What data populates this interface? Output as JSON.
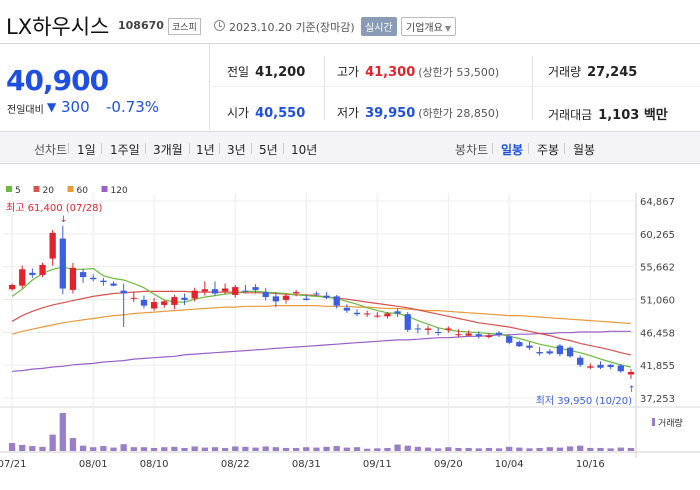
{
  "header": {
    "name": "LX하우시스",
    "code": "108670",
    "market": "코스피",
    "date": "2023.10.20 기준(장마감)",
    "realtime_label": "실시간",
    "company_label": "기업개요"
  },
  "price": {
    "current": "40,900",
    "change_label": "전일대비",
    "change_value": "300",
    "change_pct": "-0.73%",
    "color_down": "#1e4fe0",
    "color_up": "#e0242b"
  },
  "stats": {
    "prev_label": "전일",
    "prev": "41,200",
    "high_label": "고가",
    "high": "41,300",
    "upper_limit": "(상한가 53,500)",
    "volume_label": "거래량",
    "volume": "27,245",
    "open_label": "시가",
    "open": "40,550",
    "low_label": "저가",
    "low": "39,950",
    "lower_limit": "(하한가 28,850)",
    "amount_label": "거래대금",
    "amount": "1,103 백만"
  },
  "period_bar": {
    "line_label": "선차트",
    "periods": [
      "1일",
      "1주일",
      "3개월",
      "1년",
      "3년",
      "5년",
      "10년"
    ],
    "candle_label": "봉차트",
    "candles": [
      "일봉",
      "주봉",
      "월봉"
    ],
    "active_candle": "일봉"
  },
  "chart_data": {
    "type": "candlestick",
    "legend": [
      {
        "label": "5",
        "color": "#6dbb3d"
      },
      {
        "label": "20",
        "color": "#d9534f"
      },
      {
        "label": "60",
        "color": "#e89a3c"
      },
      {
        "label": "120",
        "color": "#9a5fc8"
      }
    ],
    "ylim": [
      37253,
      64867
    ],
    "y_ticks": [
      "64,867",
      "60,265",
      "55,662",
      "51,060",
      "46,458",
      "41,855",
      "37,253"
    ],
    "x_ticks": [
      "07/21",
      "08/01",
      "08/10",
      "08/22",
      "08/31",
      "09/11",
      "09/20",
      "10/04",
      "10/16"
    ],
    "max_label": "최고 61,400 (07/28)",
    "min_label": "최저 39,950 (10/20)",
    "volume_label": "거래량",
    "ohlc": [
      [
        52500,
        53300,
        52300,
        53100
      ],
      [
        53000,
        55800,
        52600,
        55300
      ],
      [
        54800,
        55400,
        54100,
        54500
      ],
      [
        54500,
        56200,
        54200,
        55900
      ],
      [
        56800,
        60800,
        55800,
        60400
      ],
      [
        59600,
        61400,
        51800,
        52600
      ],
      [
        52400,
        56200,
        51900,
        55500
      ],
      [
        54900,
        55400,
        53400,
        54200
      ],
      [
        54100,
        54600,
        53600,
        53900
      ],
      [
        53700,
        54100,
        53000,
        53500
      ],
      [
        53300,
        53600,
        52900,
        53000
      ],
      [
        52300,
        53300,
        47200,
        51900
      ],
      [
        51200,
        52100,
        50700,
        51300
      ],
      [
        51000,
        51600,
        49800,
        50200
      ],
      [
        49800,
        51300,
        49500,
        50700
      ],
      [
        50300,
        51000,
        49900,
        50800
      ],
      [
        50300,
        51700,
        49700,
        51400
      ],
      [
        51300,
        51900,
        50300,
        51000
      ],
      [
        51200,
        52700,
        50800,
        52300
      ],
      [
        52200,
        53600,
        51600,
        52500
      ],
      [
        52500,
        53600,
        51600,
        51900
      ],
      [
        52200,
        53300,
        51800,
        52600
      ],
      [
        51700,
        53100,
        51300,
        52800
      ],
      [
        52300,
        53100,
        51900,
        52200
      ],
      [
        52800,
        53200,
        51900,
        52400
      ],
      [
        52100,
        52700,
        50900,
        51400
      ],
      [
        51500,
        52100,
        50000,
        50800
      ],
      [
        51000,
        51900,
        50500,
        51600
      ],
      [
        51900,
        52400,
        51500,
        52100
      ],
      [
        51200,
        51700,
        50900,
        51000
      ],
      [
        51900,
        52200,
        51600,
        51800
      ],
      [
        51600,
        52100,
        51100,
        51300
      ],
      [
        51500,
        51700,
        49800,
        50200
      ],
      [
        49900,
        50400,
        49200,
        49500
      ],
      [
        49200,
        49700,
        48700,
        49000
      ],
      [
        49000,
        49500,
        48600,
        49100
      ],
      [
        48700,
        49300,
        48500,
        48800
      ],
      [
        48700,
        49300,
        48400,
        49100
      ],
      [
        49400,
        49800,
        48600,
        49100
      ],
      [
        49000,
        49300,
        46500,
        46800
      ],
      [
        47000,
        47600,
        46300,
        46900
      ],
      [
        46800,
        47400,
        46100,
        47000
      ],
      [
        46500,
        47100,
        46000,
        46400
      ],
      [
        46800,
        47300,
        46400,
        47000
      ],
      [
        46100,
        46900,
        45800,
        46200
      ],
      [
        46000,
        46700,
        45900,
        46300
      ],
      [
        46200,
        46600,
        45600,
        45900
      ],
      [
        45800,
        46300,
        45600,
        46000
      ],
      [
        46400,
        46600,
        45800,
        46100
      ],
      [
        45900,
        46100,
        44800,
        45000
      ],
      [
        45100,
        45300,
        44400,
        44500
      ],
      [
        44600,
        45100,
        44000,
        44300
      ],
      [
        43700,
        44400,
        43200,
        43500
      ],
      [
        43800,
        44100,
        43300,
        43500
      ],
      [
        44600,
        44800,
        43100,
        43400
      ],
      [
        44300,
        44500,
        42900,
        43100
      ],
      [
        42900,
        43200,
        41600,
        41900
      ],
      [
        41500,
        42100,
        41300,
        41700
      ],
      [
        41900,
        42400,
        41300,
        41500
      ],
      [
        41900,
        42000,
        41300,
        41600
      ],
      [
        41800,
        42000,
        40800,
        41000
      ],
      [
        40550,
        41300,
        39950,
        40900
      ]
    ],
    "volumes": [
      0.21,
      0.16,
      0.13,
      0.11,
      0.43,
      1.0,
      0.34,
      0.14,
      0.1,
      0.13,
      0.09,
      0.18,
      0.1,
      0.1,
      0.08,
      0.1,
      0.11,
      0.08,
      0.12,
      0.09,
      0.1,
      0.08,
      0.12,
      0.11,
      0.09,
      0.12,
      0.1,
      0.08,
      0.08,
      0.1,
      0.09,
      0.11,
      0.13,
      0.09,
      0.1,
      0.06,
      0.07,
      0.08,
      0.17,
      0.14,
      0.11,
      0.09,
      0.07,
      0.1,
      0.08,
      0.08,
      0.07,
      0.08,
      0.07,
      0.11,
      0.09,
      0.07,
      0.08,
      0.1,
      0.09,
      0.12,
      0.14,
      0.08,
      0.08,
      0.07,
      0.09,
      0.08
    ],
    "ma5": [
      51500,
      52500,
      53800,
      54700,
      55300,
      55600,
      55300,
      55300,
      55400,
      54400,
      54000,
      53800,
      53300,
      52700,
      51800,
      51000,
      50700,
      50700,
      51100,
      51400,
      51600,
      51800,
      52000,
      52200,
      52200,
      52100,
      52000,
      51900,
      51700,
      51600,
      51500,
      51400,
      51200,
      50800,
      50400,
      49900,
      49500,
      49200,
      49100,
      48700,
      48100,
      47600,
      47100,
      46800,
      46600,
      46500,
      46400,
      46300,
      46200,
      45900,
      45600,
      45200,
      44800,
      44500,
      44200,
      43900,
      43600,
      43200,
      42700,
      42300,
      41900,
      41600
    ],
    "ma20": [
      48000,
      48800,
      49400,
      49900,
      50300,
      50600,
      50900,
      51200,
      51500,
      51700,
      51900,
      52000,
      52100,
      52200,
      52200,
      52200,
      52200,
      52200,
      52100,
      52100,
      52100,
      52100,
      52100,
      52000,
      52000,
      52000,
      51900,
      51800,
      51700,
      51700,
      51600,
      51400,
      51300,
      51100,
      50900,
      50700,
      50500,
      50300,
      50100,
      49900,
      49600,
      49300,
      49000,
      48700,
      48400,
      48100,
      47800,
      47600,
      47400,
      47200,
      46900,
      46600,
      46300,
      46000,
      45600,
      45300,
      44900,
      44600,
      44300,
      44000,
      43600,
      43300
    ],
    "ma60": [
      46200,
      46600,
      46900,
      47200,
      47500,
      47800,
      48000,
      48200,
      48400,
      48600,
      48800,
      48900,
      49100,
      49200,
      49300,
      49400,
      49500,
      49600,
      49700,
      49800,
      49900,
      50000,
      50000,
      50100,
      50100,
      50100,
      50200,
      50200,
      50200,
      50200,
      50200,
      50100,
      50100,
      50100,
      50000,
      50000,
      49900,
      49800,
      49800,
      49700,
      49600,
      49500,
      49500,
      49400,
      49300,
      49200,
      49100,
      49000,
      48900,
      48800,
      48800,
      48700,
      48600,
      48500,
      48400,
      48300,
      48200,
      48100,
      48000,
      47900,
      47800,
      47700
    ],
    "ma120": [
      41000,
      41100,
      41300,
      41400,
      41600,
      41700,
      41900,
      42000,
      42100,
      42300,
      42400,
      42500,
      42700,
      42800,
      42900,
      43000,
      43100,
      43300,
      43400,
      43500,
      43600,
      43700,
      43800,
      43900,
      44000,
      44100,
      44200,
      44300,
      44400,
      44500,
      44600,
      44700,
      44800,
      44900,
      45000,
      45100,
      45200,
      45300,
      45400,
      45400,
      45500,
      45600,
      45700,
      45700,
      45800,
      45900,
      45900,
      46000,
      46100,
      46100,
      46200,
      46200,
      46300,
      46300,
      46400,
      46400,
      46500,
      46500,
      46500,
      46600,
      46600,
      46600
    ]
  }
}
